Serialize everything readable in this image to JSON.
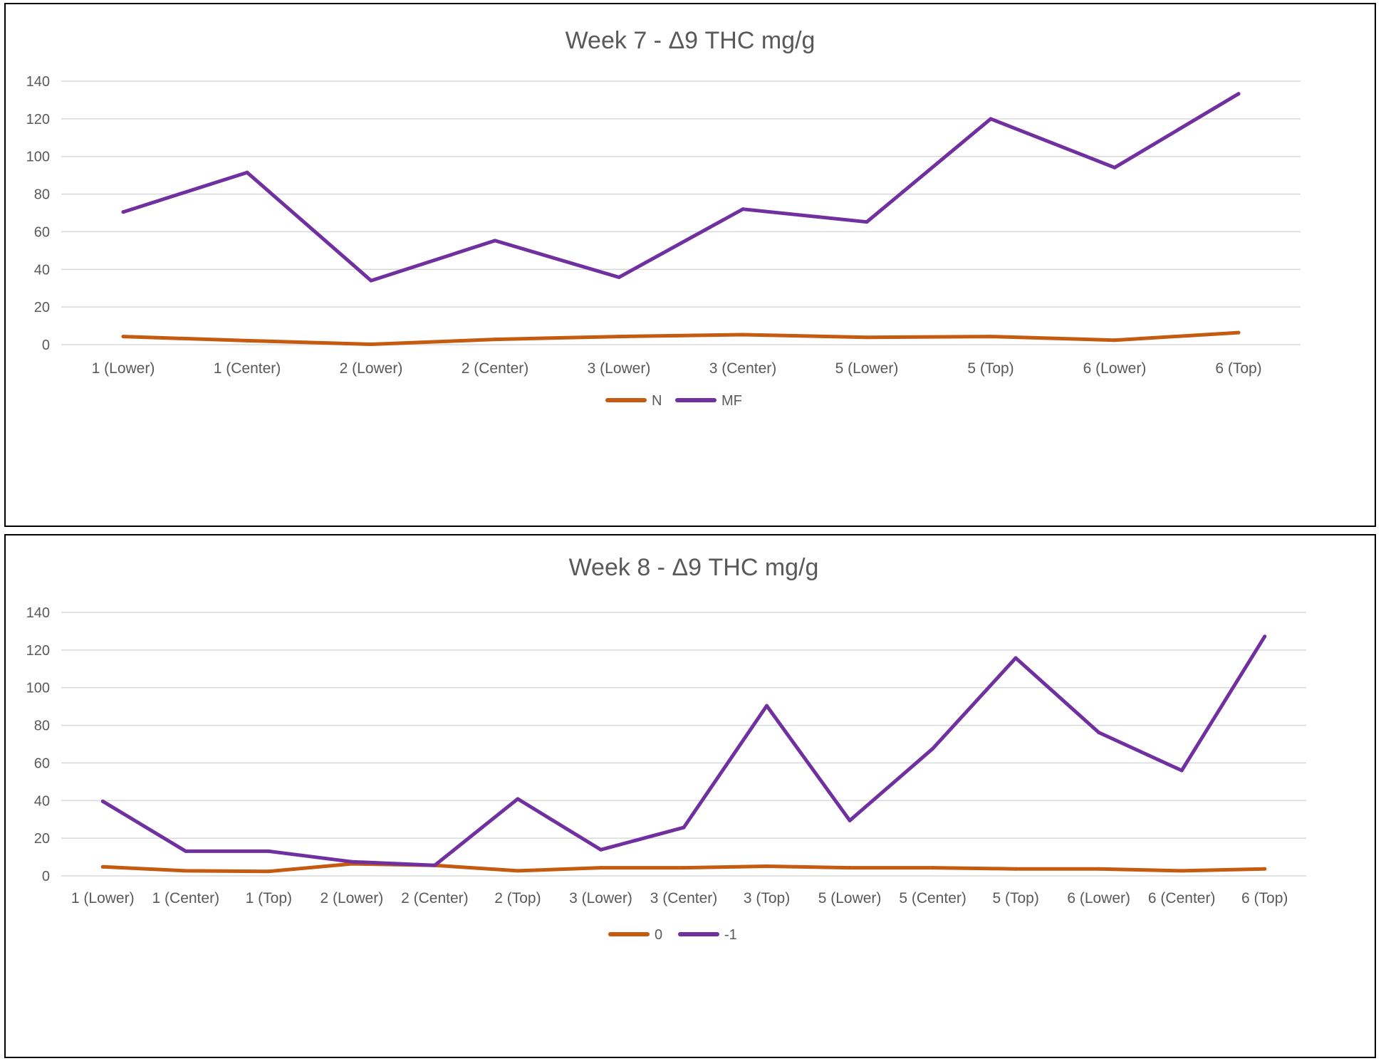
{
  "colors": {
    "series_a": "#C55A11",
    "series_b": "#7030A0",
    "grid": "#D9D9D9",
    "text": "#595959"
  },
  "chart_data": [
    {
      "type": "line",
      "title": "Week  7 - Δ9 THC mg/g",
      "ylim": [
        0,
        140
      ],
      "yticks": [
        0,
        20,
        40,
        60,
        80,
        100,
        120,
        140
      ],
      "grid": true,
      "legend_position": "bottom",
      "categories": [
        "1 (Lower)",
        "1 (Center)",
        "2 (Lower)",
        "2 (Center)",
        "3 (Lower)",
        "3 (Center)",
        "5 (Lower)",
        "5 (Top)",
        "6 (Lower)",
        "6 (Top)"
      ],
      "series": [
        {
          "name": "N",
          "color": "#C55A11",
          "values": [
            4.3,
            2.1,
            0.2,
            2.8,
            4.3,
            5.3,
            3.9,
            4.3,
            2.4,
            6.4
          ]
        },
        {
          "name": "MF",
          "color": "#7030A0",
          "values": [
            70.5,
            91.5,
            34,
            55.3,
            35.8,
            72,
            65.2,
            120,
            94.1,
            133.3
          ]
        }
      ]
    },
    {
      "type": "line",
      "title": "Week  8 - Δ9 THC mg/g",
      "ylim": [
        0,
        140
      ],
      "yticks": [
        0,
        20,
        40,
        60,
        80,
        100,
        120,
        140
      ],
      "grid": true,
      "legend_position": "bottom",
      "categories": [
        "1 (Lower)",
        "1 (Center)",
        "1 (Top)",
        "2 (Lower)",
        "2 (Center)",
        "2 (Top)",
        "3 (Lower)",
        "3 (Center)",
        "3 (Top)",
        "5 (Lower)",
        "5 (Center)",
        "5 (Top)",
        "6 (Lower)",
        "6 (Center)",
        "6 (Top)"
      ],
      "series": [
        {
          "name": "0",
          "color": "#C55A11",
          "values": [
            4.8,
            2.7,
            2.4,
            6.4,
            5.6,
            2.7,
            4.3,
            4.3,
            5.1,
            4.3,
            4.3,
            3.7,
            3.7,
            2.7,
            3.7
          ]
        },
        {
          "name": "-1",
          "color": "#7030A0",
          "values": [
            39.6,
            13.1,
            13.1,
            7.5,
            5.6,
            40.9,
            13.9,
            25.7,
            90.4,
            29.4,
            67.6,
            115.8,
            76.2,
            56,
            127.2
          ]
        }
      ]
    }
  ]
}
